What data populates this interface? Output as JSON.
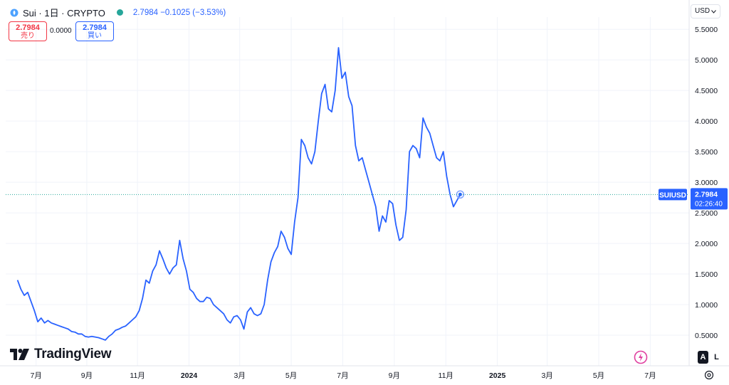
{
  "header": {
    "symbol_title": "Sui · 1日 · CRYPTO",
    "quote": "2.7984  −0.1025 (−3.53%)",
    "sell_price": "2.7984",
    "sell_label": "売り",
    "spread": "0.0000",
    "buy_price": "2.7984",
    "buy_label": "買い"
  },
  "currency_button": "USD",
  "branding": {
    "logo_text": "TradingView"
  },
  "controls": {
    "auto_label": "A",
    "log_label": "L"
  },
  "icons": {
    "symbol": "sui-logo-icon",
    "status": "market-status-icon",
    "settings": "gear-icon",
    "flash": "lightning-icon",
    "brand": "tradingview-logo-icon"
  },
  "colors": {
    "line": "#2962ff",
    "price_tag": "#2962ff",
    "grid": "#f0f3fa",
    "text": "#131722",
    "sell": "#f23645",
    "buy": "#2962ff"
  },
  "chart_data": {
    "type": "line",
    "title": "Sui · 1日 · CRYPTO",
    "series": [
      {
        "name": "SUIUSD",
        "points": [
          [
            0,
            1.4
          ],
          [
            4,
            1.25
          ],
          [
            8,
            1.15
          ],
          [
            12,
            1.2
          ],
          [
            16,
            1.05
          ],
          [
            20,
            0.9
          ],
          [
            24,
            0.72
          ],
          [
            28,
            0.78
          ],
          [
            32,
            0.7
          ],
          [
            36,
            0.74
          ],
          [
            40,
            0.7
          ],
          [
            44,
            0.68
          ],
          [
            48,
            0.66
          ],
          [
            52,
            0.64
          ],
          [
            56,
            0.62
          ],
          [
            60,
            0.6
          ],
          [
            64,
            0.56
          ],
          [
            68,
            0.55
          ],
          [
            72,
            0.52
          ],
          [
            76,
            0.52
          ],
          [
            80,
            0.48
          ],
          [
            84,
            0.47
          ],
          [
            88,
            0.48
          ],
          [
            92,
            0.47
          ],
          [
            96,
            0.46
          ],
          [
            100,
            0.44
          ],
          [
            104,
            0.42
          ],
          [
            108,
            0.48
          ],
          [
            112,
            0.52
          ],
          [
            116,
            0.58
          ],
          [
            120,
            0.6
          ],
          [
            124,
            0.63
          ],
          [
            128,
            0.65
          ],
          [
            132,
            0.7
          ],
          [
            136,
            0.75
          ],
          [
            140,
            0.8
          ],
          [
            144,
            0.9
          ],
          [
            148,
            1.1
          ],
          [
            152,
            1.4
          ],
          [
            156,
            1.35
          ],
          [
            160,
            1.55
          ],
          [
            164,
            1.65
          ],
          [
            168,
            1.88
          ],
          [
            172,
            1.75
          ],
          [
            176,
            1.6
          ],
          [
            180,
            1.5
          ],
          [
            184,
            1.6
          ],
          [
            188,
            1.65
          ],
          [
            192,
            2.05
          ],
          [
            196,
            1.75
          ],
          [
            200,
            1.55
          ],
          [
            204,
            1.25
          ],
          [
            208,
            1.2
          ],
          [
            212,
            1.1
          ],
          [
            216,
            1.05
          ],
          [
            220,
            1.05
          ],
          [
            224,
            1.12
          ],
          [
            228,
            1.1
          ],
          [
            232,
            1.0
          ],
          [
            236,
            0.95
          ],
          [
            240,
            0.9
          ],
          [
            244,
            0.85
          ],
          [
            248,
            0.75
          ],
          [
            252,
            0.7
          ],
          [
            256,
            0.8
          ],
          [
            260,
            0.82
          ],
          [
            264,
            0.75
          ],
          [
            268,
            0.6
          ],
          [
            272,
            0.88
          ],
          [
            276,
            0.95
          ],
          [
            280,
            0.85
          ],
          [
            284,
            0.82
          ],
          [
            288,
            0.85
          ],
          [
            292,
            1.0
          ],
          [
            296,
            1.4
          ],
          [
            300,
            1.7
          ],
          [
            304,
            1.85
          ],
          [
            308,
            1.95
          ],
          [
            312,
            2.2
          ],
          [
            316,
            2.1
          ],
          [
            320,
            1.92
          ],
          [
            324,
            1.82
          ],
          [
            328,
            2.35
          ],
          [
            332,
            2.75
          ],
          [
            336,
            3.7
          ],
          [
            340,
            3.6
          ],
          [
            344,
            3.4
          ],
          [
            348,
            3.3
          ],
          [
            352,
            3.5
          ],
          [
            356,
            4.0
          ],
          [
            360,
            4.45
          ],
          [
            364,
            4.6
          ],
          [
            368,
            4.2
          ],
          [
            372,
            4.15
          ],
          [
            376,
            4.5
          ],
          [
            380,
            5.2
          ],
          [
            384,
            4.7
          ],
          [
            388,
            4.8
          ],
          [
            392,
            4.4
          ],
          [
            396,
            4.25
          ],
          [
            400,
            3.6
          ],
          [
            404,
            3.35
          ],
          [
            408,
            3.4
          ],
          [
            412,
            3.2
          ],
          [
            416,
            3.0
          ],
          [
            420,
            2.8
          ],
          [
            424,
            2.6
          ],
          [
            428,
            2.2
          ],
          [
            432,
            2.45
          ],
          [
            436,
            2.35
          ],
          [
            440,
            2.7
          ],
          [
            444,
            2.65
          ],
          [
            448,
            2.3
          ],
          [
            452,
            2.05
          ],
          [
            456,
            2.1
          ],
          [
            460,
            2.55
          ],
          [
            464,
            3.5
          ],
          [
            468,
            3.6
          ],
          [
            472,
            3.55
          ],
          [
            476,
            3.4
          ],
          [
            480,
            4.05
          ],
          [
            484,
            3.9
          ],
          [
            488,
            3.8
          ],
          [
            492,
            3.6
          ],
          [
            496,
            3.4
          ],
          [
            500,
            3.35
          ],
          [
            504,
            3.5
          ],
          [
            508,
            3.1
          ],
          [
            512,
            2.8
          ],
          [
            516,
            2.6
          ],
          [
            520,
            2.7
          ],
          [
            524,
            2.8
          ]
        ]
      }
    ],
    "x_tick_labels": [
      "7月",
      "9月",
      "11月",
      "2024",
      "3月",
      "5月",
      "7月",
      "9月",
      "11月",
      "2025",
      "3月",
      "5月",
      "7月"
    ],
    "x_tick_days": [
      22,
      82,
      142,
      203,
      263,
      324,
      385,
      446,
      507,
      568,
      627,
      688,
      749
    ],
    "x_range_days": [
      -14,
      795
    ],
    "x_bold_labels": [
      "2024",
      "2025"
    ],
    "y_ticks": [
      0.5,
      1.0,
      1.5,
      2.0,
      2.5,
      3.0,
      3.5,
      4.0,
      4.5,
      5.0,
      5.5
    ],
    "y_tick_labels": [
      "0.5000",
      "1.0000",
      "1.5000",
      "2.0000",
      "2.5000",
      "3.0000",
      "3.5000",
      "4.0000",
      "4.5000",
      "5.0000",
      "5.5000"
    ],
    "ylim": [
      0.0,
      5.7
    ],
    "last_price": 2.7984,
    "last_price_label": "2.7984",
    "price_tag_symbol": "SUIUSD",
    "countdown": "02:26:40",
    "grid": true
  }
}
